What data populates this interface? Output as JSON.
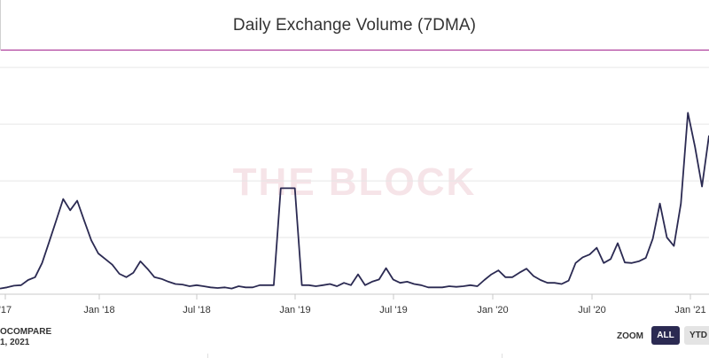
{
  "header": {
    "title": "Daily Exchange Volume (7DMA)"
  },
  "watermark": "THE BLOCK",
  "source": {
    "line1": "OCOMPARE",
    "line2": "1, 2021"
  },
  "zoom": {
    "label": "ZOOM",
    "buttons": [
      "ALL",
      "YTD"
    ],
    "selected": "ALL"
  },
  "colors": {
    "line": "#2b2a52",
    "title_rule": "#a3238e",
    "grid": "#e6e6e6",
    "watermark": "#f6e4e8"
  },
  "chart_data": {
    "type": "line",
    "title": "Daily Exchange Volume (7DMA)",
    "xlabel": "",
    "ylabel": "",
    "x_tick_labels": [
      "'17",
      "Jan '18",
      "Jul '18",
      "Jan '19",
      "Jul '19",
      "Jan '20",
      "Jul '20",
      "Jan '21"
    ],
    "grid": true,
    "ylim": [
      0,
      4.3
    ],
    "series": [
      {
        "values": [
          0.1,
          0.12,
          0.15,
          0.16,
          0.25,
          0.3,
          0.55,
          0.92,
          1.3,
          1.68,
          1.48,
          1.65,
          1.3,
          0.95,
          0.72,
          0.62,
          0.52,
          0.36,
          0.3,
          0.38,
          0.58,
          0.45,
          0.3,
          0.27,
          0.22,
          0.18,
          0.17,
          0.14,
          0.16,
          0.14,
          0.12,
          0.11,
          0.12,
          0.1,
          0.14,
          0.12,
          0.12,
          0.16,
          0.16,
          0.16,
          1.87,
          1.87,
          1.87,
          0.16,
          0.16,
          0.14,
          0.16,
          0.18,
          0.14,
          0.2,
          0.16,
          0.35,
          0.16,
          0.22,
          0.26,
          0.46,
          0.26,
          0.2,
          0.22,
          0.18,
          0.16,
          0.12,
          0.12,
          0.12,
          0.14,
          0.13,
          0.14,
          0.16,
          0.14,
          0.25,
          0.35,
          0.42,
          0.3,
          0.3,
          0.38,
          0.45,
          0.32,
          0.25,
          0.2,
          0.2,
          0.18,
          0.24,
          0.55,
          0.65,
          0.7,
          0.82,
          0.55,
          0.62,
          0.9,
          0.56,
          0.55,
          0.58,
          0.64,
          0.98,
          1.6,
          1.0,
          0.85,
          1.6,
          3.2,
          2.6,
          1.9,
          2.8
        ]
      }
    ]
  }
}
